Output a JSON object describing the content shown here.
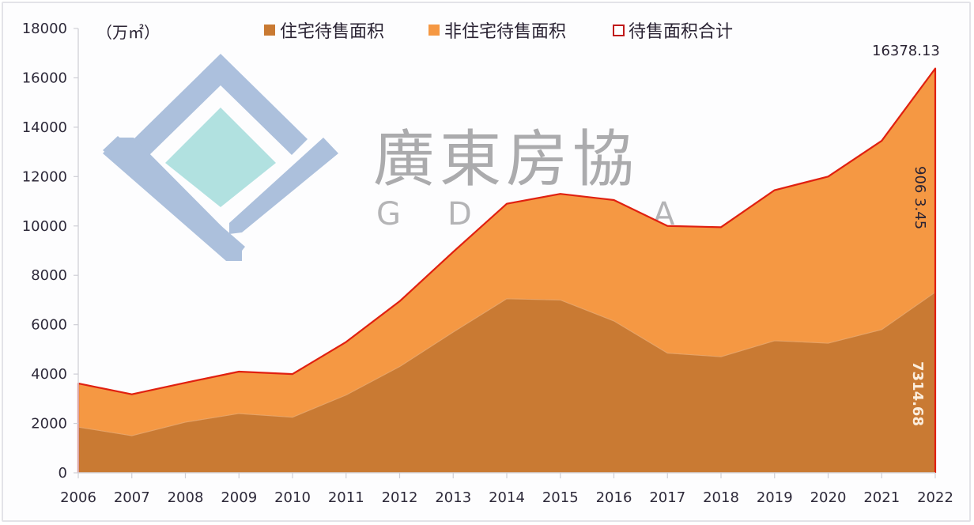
{
  "chart_data": {
    "type": "area",
    "stacked": true,
    "title": "",
    "unit_label": "（万㎡）",
    "xlabel": "",
    "ylabel": "万㎡",
    "ylim": [
      0,
      18000
    ],
    "yticks": [
      0,
      2000,
      4000,
      6000,
      8000,
      10000,
      12000,
      14000,
      16000,
      18000
    ],
    "categories": [
      "2006",
      "2007",
      "2008",
      "2009",
      "2010",
      "2011",
      "2012",
      "2013",
      "2014",
      "2015",
      "2016",
      "2017",
      "2018",
      "2019",
      "2020",
      "2021",
      "2022"
    ],
    "series": [
      {
        "name": "住宅待售面积",
        "color": "#C97A33",
        "values": [
          1850,
          1500,
          2050,
          2400,
          2250,
          3150,
          4300,
          5700,
          7050,
          7000,
          6150,
          4850,
          4700,
          5350,
          5250,
          5800,
          7314.68
        ]
      },
      {
        "name": "非住宅待售面积",
        "color": "#F59843",
        "values": [
          1770,
          1680,
          1600,
          1700,
          1750,
          2150,
          2650,
          3250,
          3850,
          4300,
          4900,
          5150,
          5250,
          6100,
          6750,
          7650,
          9063.45
        ]
      },
      {
        "name": "待售面积合计",
        "color": "#E02010",
        "values": [
          3620,
          3180,
          3650,
          4100,
          4000,
          5300,
          6950,
          8950,
          10900,
          11300,
          11050,
          10000,
          9950,
          11450,
          12000,
          13450,
          16378.13
        ]
      }
    ],
    "annotations": [
      {
        "text": "16378.13",
        "target": "total-2022"
      },
      {
        "text": "9063.45",
        "target": "non-residential-2022",
        "display": "906 3.45",
        "rotated": true
      },
      {
        "text": "7314.68",
        "target": "residential-2022",
        "rotated": true
      }
    ],
    "legend_position": "top",
    "grid": false
  },
  "legend": {
    "items": [
      {
        "label": "住宅待售面积",
        "swatch": "#C97A33",
        "style": "filled"
      },
      {
        "label": "非住宅待售面积",
        "swatch": "#F59843",
        "style": "filled"
      },
      {
        "label": "待售面积合计",
        "swatch": "#E02010",
        "style": "outline"
      }
    ]
  },
  "axis": {
    "unit": "（万㎡）",
    "y_ticks": [
      "0",
      "2000",
      "4000",
      "6000",
      "8000",
      "10000",
      "12000",
      "14000",
      "16000",
      "18000"
    ],
    "x_ticks": [
      "2006",
      "2007",
      "2008",
      "2009",
      "2010",
      "2011",
      "2012",
      "2013",
      "2014",
      "2015",
      "2016",
      "2017",
      "2018",
      "2019",
      "2020",
      "2021",
      "2022"
    ]
  },
  "annotations": {
    "total_2022": "16378.13",
    "nonres_2022": "906 3.45",
    "res_2022": "7314.68"
  },
  "watermark": {
    "chinese": "廣東房協",
    "english": [
      "G",
      "D",
      "A"
    ]
  }
}
